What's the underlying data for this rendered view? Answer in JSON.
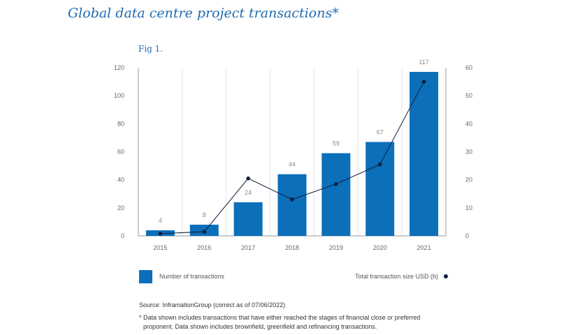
{
  "page": {
    "title": "Global data centre project transactions*",
    "fig_label": "Fig 1.",
    "source": "Source: InframationGroup (correct as of 07/06/2022)",
    "note_line1": "* Data shown includes transactions that have either reached the stages of financial close or preferred",
    "note_line2": "proponent. Data shown includes brownfield, greenfield and refinancing transactions."
  },
  "colors": {
    "bar": "#0b6fba",
    "line": "#0d1f3c",
    "grid": "#e4e4e4",
    "axis": "#9a9a9a",
    "tick_text": "#666666",
    "label_text": "#8a8a8a"
  },
  "chart_data": {
    "type": "bar",
    "categories": [
      "2015",
      "2016",
      "2017",
      "2018",
      "2019",
      "2020",
      "2021"
    ],
    "series": [
      {
        "name": "Number of transactions",
        "kind": "bar",
        "axis": "left",
        "values": [
          4,
          8,
          24,
          44,
          59,
          67,
          117
        ]
      },
      {
        "name": "Total transaction size USD (b)",
        "kind": "line",
        "axis": "right",
        "values": [
          0.8,
          1.5,
          20.5,
          13,
          18.5,
          25.5,
          55
        ]
      }
    ],
    "bar_labels": [
      "4",
      "8",
      "24",
      "44",
      "59",
      "67",
      "117"
    ],
    "y_left": {
      "min": 0,
      "max": 120,
      "ticks": [
        0,
        20,
        40,
        60,
        80,
        100,
        120
      ]
    },
    "y_right": {
      "min": 0,
      "max": 60,
      "ticks": [
        0,
        10,
        20,
        30,
        40,
        50,
        60
      ]
    },
    "grid": "vertical"
  }
}
